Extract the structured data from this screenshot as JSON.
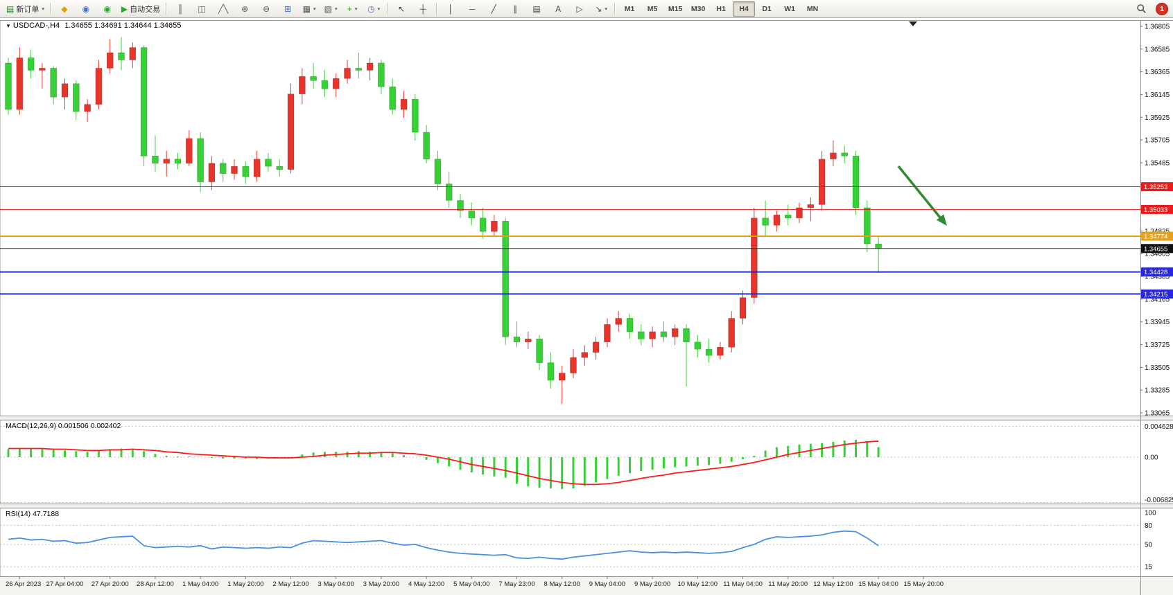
{
  "toolbar": {
    "new_order_label": "新订单",
    "autotrading_label": "自动交易",
    "notification_count": "1",
    "timeframes": [
      "M1",
      "M5",
      "M15",
      "M30",
      "H1",
      "H4",
      "D1",
      "W1",
      "MN"
    ],
    "active_timeframe": "H4",
    "items": [
      {
        "n": "new-order-button",
        "g": "▤",
        "c": "#2e7d32",
        "l": "新订单",
        "dd": true
      },
      {
        "sep": true
      },
      {
        "n": "mql5-button",
        "g": "◆",
        "c": "#d9a400"
      },
      {
        "n": "community-button",
        "g": "◉",
        "c": "#3b6fd8"
      },
      {
        "n": "market-button",
        "g": "◉",
        "c": "#2aa52a"
      },
      {
        "n": "autotrading-button",
        "g": "▶",
        "c": "#2aa52a",
        "l": "自动交易"
      },
      {
        "sep": true
      },
      {
        "n": "bar-chart-button",
        "g": "║",
        "c": "#555555"
      },
      {
        "n": "candlestick-chart-button",
        "g": "◫",
        "c": "#555555"
      },
      {
        "n": "line-chart-button",
        "g": "╱╲",
        "c": "#555555"
      },
      {
        "n": "zoom-in-button",
        "g": "⊕",
        "c": "#555555"
      },
      {
        "n": "zoom-out-button",
        "g": "⊖",
        "c": "#555555"
      },
      {
        "n": "tile-windows-button",
        "g": "⊞",
        "c": "#3b6fd8"
      },
      {
        "n": "new-chart-button",
        "g": "▦",
        "c": "#555555",
        "dd": true
      },
      {
        "n": "chart-profiles-button",
        "g": "▧",
        "c": "#555555",
        "dd": true
      },
      {
        "n": "indicators-button",
        "g": "+",
        "c": "#2aa52a",
        "dd": true
      },
      {
        "n": "periods-button",
        "g": "◷",
        "c": "#3b6fd8",
        "dd": true
      },
      {
        "sep": true
      },
      {
        "n": "cursor-button",
        "g": "↖",
        "c": "#444444"
      },
      {
        "n": "crosshair-button",
        "g": "┼",
        "c": "#444444"
      },
      {
        "sep": true
      },
      {
        "n": "vertical-line-button",
        "g": "│",
        "c": "#444444"
      },
      {
        "n": "horizontal-line-button",
        "g": "─",
        "c": "#444444"
      },
      {
        "n": "trendline-button",
        "g": "╱",
        "c": "#444444"
      },
      {
        "n": "channel-button",
        "g": "∥",
        "c": "#444444"
      },
      {
        "n": "fibonacci-button",
        "g": "▤",
        "c": "#444444"
      },
      {
        "n": "text-button",
        "g": "A",
        "c": "#444444"
      },
      {
        "n": "label-button",
        "g": "▷",
        "c": "#444444"
      },
      {
        "n": "arrows-button",
        "g": "↘",
        "c": "#444444",
        "dd": true
      },
      {
        "sep": true
      }
    ]
  },
  "chart": {
    "quote_header": {
      "symbol": "USDCAD-,H4",
      "values": "1.34655 1.34691 1.34644 1.34655"
    },
    "price_axis": {
      "tick_labels": [
        "1.36805",
        "1.36585",
        "1.36365",
        "1.36145",
        "1.35925",
        "1.35705",
        "1.35485",
        "1.35265",
        "1.35045",
        "1.34825",
        "1.34605",
        "1.34385",
        "1.34165",
        "1.33945",
        "1.33725",
        "1.33505",
        "1.33285",
        "1.33065"
      ]
    },
    "macd": {
      "header": "MACD(12,26,9) 0.001506 0.002402",
      "axis_labels": [
        "0.004628",
        "0.00",
        "-0.006825"
      ]
    },
    "rsi": {
      "header": "RSI(14) 47.7188",
      "axis_labels": [
        "100",
        "80",
        "50",
        "15"
      ]
    }
  },
  "chart_data": {
    "type": "candlestick",
    "symbol": "USDCAD-",
    "timeframe": "H4",
    "quote": {
      "bid": 1.34655,
      "open": 1.34655,
      "high": 1.34691,
      "low": 1.34644,
      "close": 1.34655
    },
    "ylim": [
      1.33065,
      1.36805
    ],
    "colors": {
      "bull": "#e8342a",
      "bear": "#35d135",
      "macd_hist": "#35d135",
      "macd_signal": "#ff1a1a",
      "rsi_line": "#4a90e0"
    },
    "candles": [
      [
        1.3645,
        1.365,
        1.3595,
        1.36
      ],
      [
        1.36,
        1.366,
        1.3595,
        1.365
      ],
      [
        1.365,
        1.3658,
        1.363,
        1.3638
      ],
      [
        1.3638,
        1.3645,
        1.362,
        1.364
      ],
      [
        1.364,
        1.3642,
        1.3605,
        1.3612
      ],
      [
        1.3612,
        1.363,
        1.36,
        1.3625
      ],
      [
        1.3625,
        1.3628,
        1.359,
        1.3598
      ],
      [
        1.3598,
        1.361,
        1.3588,
        1.3605
      ],
      [
        1.3605,
        1.3648,
        1.36,
        1.364
      ],
      [
        1.364,
        1.3668,
        1.3635,
        1.3655
      ],
      [
        1.3655,
        1.367,
        1.3638,
        1.3648
      ],
      [
        1.3648,
        1.3665,
        1.364,
        1.366
      ],
      [
        1.366,
        1.3662,
        1.3545,
        1.3555
      ],
      [
        1.3555,
        1.3575,
        1.354,
        1.3548
      ],
      [
        1.3548,
        1.356,
        1.3535,
        1.3552
      ],
      [
        1.3552,
        1.3558,
        1.3542,
        1.3548
      ],
      [
        1.3548,
        1.358,
        1.3545,
        1.3572
      ],
      [
        1.3572,
        1.3578,
        1.352,
        1.353
      ],
      [
        1.353,
        1.3555,
        1.3522,
        1.3548
      ],
      [
        1.3548,
        1.3552,
        1.353,
        1.3538
      ],
      [
        1.3538,
        1.3552,
        1.3532,
        1.3545
      ],
      [
        1.3545,
        1.355,
        1.3528,
        1.3535
      ],
      [
        1.3535,
        1.356,
        1.353,
        1.3552
      ],
      [
        1.3552,
        1.3558,
        1.354,
        1.3545
      ],
      [
        1.3545,
        1.3552,
        1.3535,
        1.3542
      ],
      [
        1.3542,
        1.3625,
        1.3538,
        1.3615
      ],
      [
        1.3615,
        1.364,
        1.3605,
        1.3632
      ],
      [
        1.3632,
        1.3645,
        1.362,
        1.3628
      ],
      [
        1.3628,
        1.3638,
        1.3612,
        1.362
      ],
      [
        1.362,
        1.3635,
        1.3612,
        1.363
      ],
      [
        1.363,
        1.3648,
        1.3625,
        1.364
      ],
      [
        1.364,
        1.3655,
        1.363,
        1.3638
      ],
      [
        1.3638,
        1.365,
        1.3628,
        1.3645
      ],
      [
        1.3645,
        1.3648,
        1.3615,
        1.3622
      ],
      [
        1.3622,
        1.363,
        1.3595,
        1.36
      ],
      [
        1.36,
        1.3618,
        1.3592,
        1.361
      ],
      [
        1.361,
        1.3615,
        1.357,
        1.3578
      ],
      [
        1.3578,
        1.3585,
        1.3548,
        1.3552
      ],
      [
        1.3552,
        1.356,
        1.3522,
        1.3528
      ],
      [
        1.3528,
        1.354,
        1.3505,
        1.3512
      ],
      [
        1.3512,
        1.3518,
        1.3495,
        1.3502
      ],
      [
        1.3502,
        1.351,
        1.3488,
        1.3495
      ],
      [
        1.3495,
        1.3505,
        1.3475,
        1.3482
      ],
      [
        1.3482,
        1.3498,
        1.3478,
        1.3492
      ],
      [
        1.3492,
        1.3495,
        1.3372,
        1.338
      ],
      [
        1.338,
        1.3395,
        1.337,
        1.3375
      ],
      [
        1.3375,
        1.3385,
        1.3368,
        1.3378
      ],
      [
        1.3378,
        1.3382,
        1.3348,
        1.3355
      ],
      [
        1.3355,
        1.3365,
        1.333,
        1.3338
      ],
      [
        1.3338,
        1.3352,
        1.3315,
        1.3345
      ],
      [
        1.3345,
        1.3368,
        1.334,
        1.336
      ],
      [
        1.336,
        1.3372,
        1.3352,
        1.3365
      ],
      [
        1.3365,
        1.338,
        1.3358,
        1.3375
      ],
      [
        1.3375,
        1.3398,
        1.337,
        1.3392
      ],
      [
        1.3392,
        1.3405,
        1.3385,
        1.3398
      ],
      [
        1.3398,
        1.3402,
        1.3378,
        1.3385
      ],
      [
        1.3385,
        1.3392,
        1.3372,
        1.3378
      ],
      [
        1.3378,
        1.339,
        1.337,
        1.3385
      ],
      [
        1.3385,
        1.3395,
        1.3375,
        1.338
      ],
      [
        1.338,
        1.3392,
        1.3372,
        1.3388
      ],
      [
        1.3388,
        1.3392,
        1.3332,
        1.3375
      ],
      [
        1.3375,
        1.3382,
        1.336,
        1.3368
      ],
      [
        1.3368,
        1.3378,
        1.3355,
        1.3362
      ],
      [
        1.3362,
        1.3375,
        1.3358,
        1.337
      ],
      [
        1.337,
        1.3405,
        1.3365,
        1.3398
      ],
      [
        1.3398,
        1.3425,
        1.3392,
        1.3418
      ],
      [
        1.3418,
        1.3505,
        1.3412,
        1.3495
      ],
      [
        1.3495,
        1.3512,
        1.3478,
        1.3488
      ],
      [
        1.3488,
        1.3502,
        1.3482,
        1.3498
      ],
      [
        1.3498,
        1.3508,
        1.3488,
        1.3495
      ],
      [
        1.3495,
        1.351,
        1.349,
        1.3505
      ],
      [
        1.3505,
        1.3515,
        1.3492,
        1.3508
      ],
      [
        1.3508,
        1.356,
        1.3502,
        1.3552
      ],
      [
        1.3552,
        1.357,
        1.3545,
        1.3558
      ],
      [
        1.3558,
        1.3565,
        1.3548,
        1.3555
      ],
      [
        1.3555,
        1.356,
        1.3498,
        1.3505
      ],
      [
        1.3505,
        1.3512,
        1.3462,
        1.347
      ],
      [
        1.347,
        1.3478,
        1.3442,
        1.34655
      ]
    ],
    "levels": [
      {
        "price": 1.35253,
        "label": "1.35253",
        "color": "#ec1c1c",
        "width": 1
      },
      {
        "price": 1.35033,
        "label": "1.35033",
        "color": "#ec1c1c",
        "width": 1
      },
      {
        "price": 1.34774,
        "label": "1.34774",
        "color": "#e8a118",
        "width": 2
      },
      {
        "price": 1.34655,
        "label": "1.34655",
        "color": "#383838",
        "width": 1,
        "current": true
      },
      {
        "price": 1.34428,
        "label": "1.34428",
        "color": "#2828d8",
        "width": 2
      },
      {
        "price": 1.34215,
        "label": "1.34215",
        "color": "#2828d8",
        "width": 2
      }
    ],
    "annotations": [
      {
        "type": "arrow",
        "direction": "down-right",
        "color": "#2e8b2e",
        "from_price": 1.3545,
        "to_price": 1.3488
      }
    ],
    "macd": {
      "params": [
        12,
        26,
        9
      ],
      "current": [
        0.001506,
        0.002402
      ],
      "range": [
        -0.006825,
        0.004628
      ],
      "hist": [
        0.0012,
        0.0014,
        0.0013,
        0.0012,
        0.0011,
        0.001,
        0.0009,
        0.0008,
        0.001,
        0.0012,
        0.0013,
        0.0013,
        0.0009,
        0.0005,
        0.0002,
        0.0001,
        0.0001,
        0,
        -0.0001,
        -0.0002,
        -0.0002,
        -0.0002,
        -0.0003,
        -0.0002,
        -0.0001,
        0,
        0.0004,
        0.0007,
        0.0008,
        0.0008,
        0.0008,
        0.0009,
        0.0008,
        0.0008,
        0.0006,
        0.0003,
        0,
        -0.0004,
        -0.0009,
        -0.0014,
        -0.0019,
        -0.0023,
        -0.0026,
        -0.0029,
        -0.0031,
        -0.004,
        -0.0044,
        -0.0046,
        -0.0047,
        -0.0048,
        -0.0047,
        -0.0043,
        -0.0038,
        -0.0033,
        -0.0028,
        -0.0024,
        -0.0021,
        -0.0019,
        -0.0017,
        -0.0015,
        -0.0014,
        -0.0013,
        -0.0012,
        -0.001,
        -0.0007,
        -0.0003,
        0.0002,
        0.001,
        0.0015,
        0.0017,
        0.0019,
        0.002,
        0.0021,
        0.0023,
        0.0025,
        0.0026,
        0.0024,
        0.0015
      ],
      "signal": [
        0.0013,
        0.0013,
        0.0013,
        0.0013,
        0.0012,
        0.0012,
        0.0011,
        0.001,
        0.001,
        0.0011,
        0.0011,
        0.0012,
        0.0011,
        0.001,
        0.0008,
        0.0007,
        0.0005,
        0.0004,
        0.0003,
        0.0002,
        0.0001,
        0,
        0,
        -0.0001,
        -0.0001,
        -0.0001,
        0,
        0.0001,
        0.0003,
        0.0004,
        0.0005,
        0.0006,
        0.0006,
        0.0007,
        0.0007,
        0.0006,
        0.0005,
        0.0003,
        0,
        -0.0003,
        -0.0007,
        -0.0011,
        -0.0014,
        -0.0017,
        -0.002,
        -0.0024,
        -0.0028,
        -0.0032,
        -0.0035,
        -0.0038,
        -0.004,
        -0.0041,
        -0.0041,
        -0.004,
        -0.0038,
        -0.0035,
        -0.0032,
        -0.0029,
        -0.0027,
        -0.0024,
        -0.0022,
        -0.002,
        -0.0018,
        -0.0016,
        -0.0014,
        -0.0011,
        -0.0008,
        -0.0004,
        0,
        0.0004,
        0.0007,
        0.001,
        0.0013,
        0.0016,
        0.0019,
        0.0021,
        0.0023,
        0.0024
      ]
    },
    "rsi": {
      "period": 14,
      "current": 47.7188,
      "levels": [
        80,
        50,
        15
      ],
      "values": [
        58,
        60,
        57,
        58,
        55,
        56,
        52,
        53,
        57,
        61,
        62,
        63,
        48,
        45,
        46,
        47,
        46,
        48,
        43,
        46,
        45,
        44,
        45,
        44,
        46,
        45,
        52,
        56,
        55,
        54,
        53,
        54,
        55,
        56,
        52,
        49,
        50,
        45,
        41,
        38,
        36,
        35,
        34,
        33,
        34,
        29,
        28,
        30,
        28,
        27,
        30,
        32,
        34,
        36,
        38,
        40,
        38,
        37,
        38,
        37,
        38,
        37,
        36,
        37,
        39,
        45,
        50,
        58,
        62,
        61,
        62,
        63,
        65,
        69,
        71,
        70,
        60,
        48
      ]
    },
    "x_labels": [
      "26 Apr 2023",
      "27 Apr 04:00",
      "27 Apr 20:00",
      "28 Apr 12:00",
      "1 May 04:00",
      "1 May 20:00",
      "2 May 12:00",
      "3 May 04:00",
      "3 May 20:00",
      "4 May 12:00",
      "5 May 04:00",
      "7 May 23:00",
      "8 May 12:00",
      "9 May 04:00",
      "9 May 20:00",
      "10 May 12:00",
      "11 May 04:00",
      "11 May 20:00",
      "12 May 12:00",
      "15 May 04:00",
      "15 May 20:00"
    ]
  }
}
